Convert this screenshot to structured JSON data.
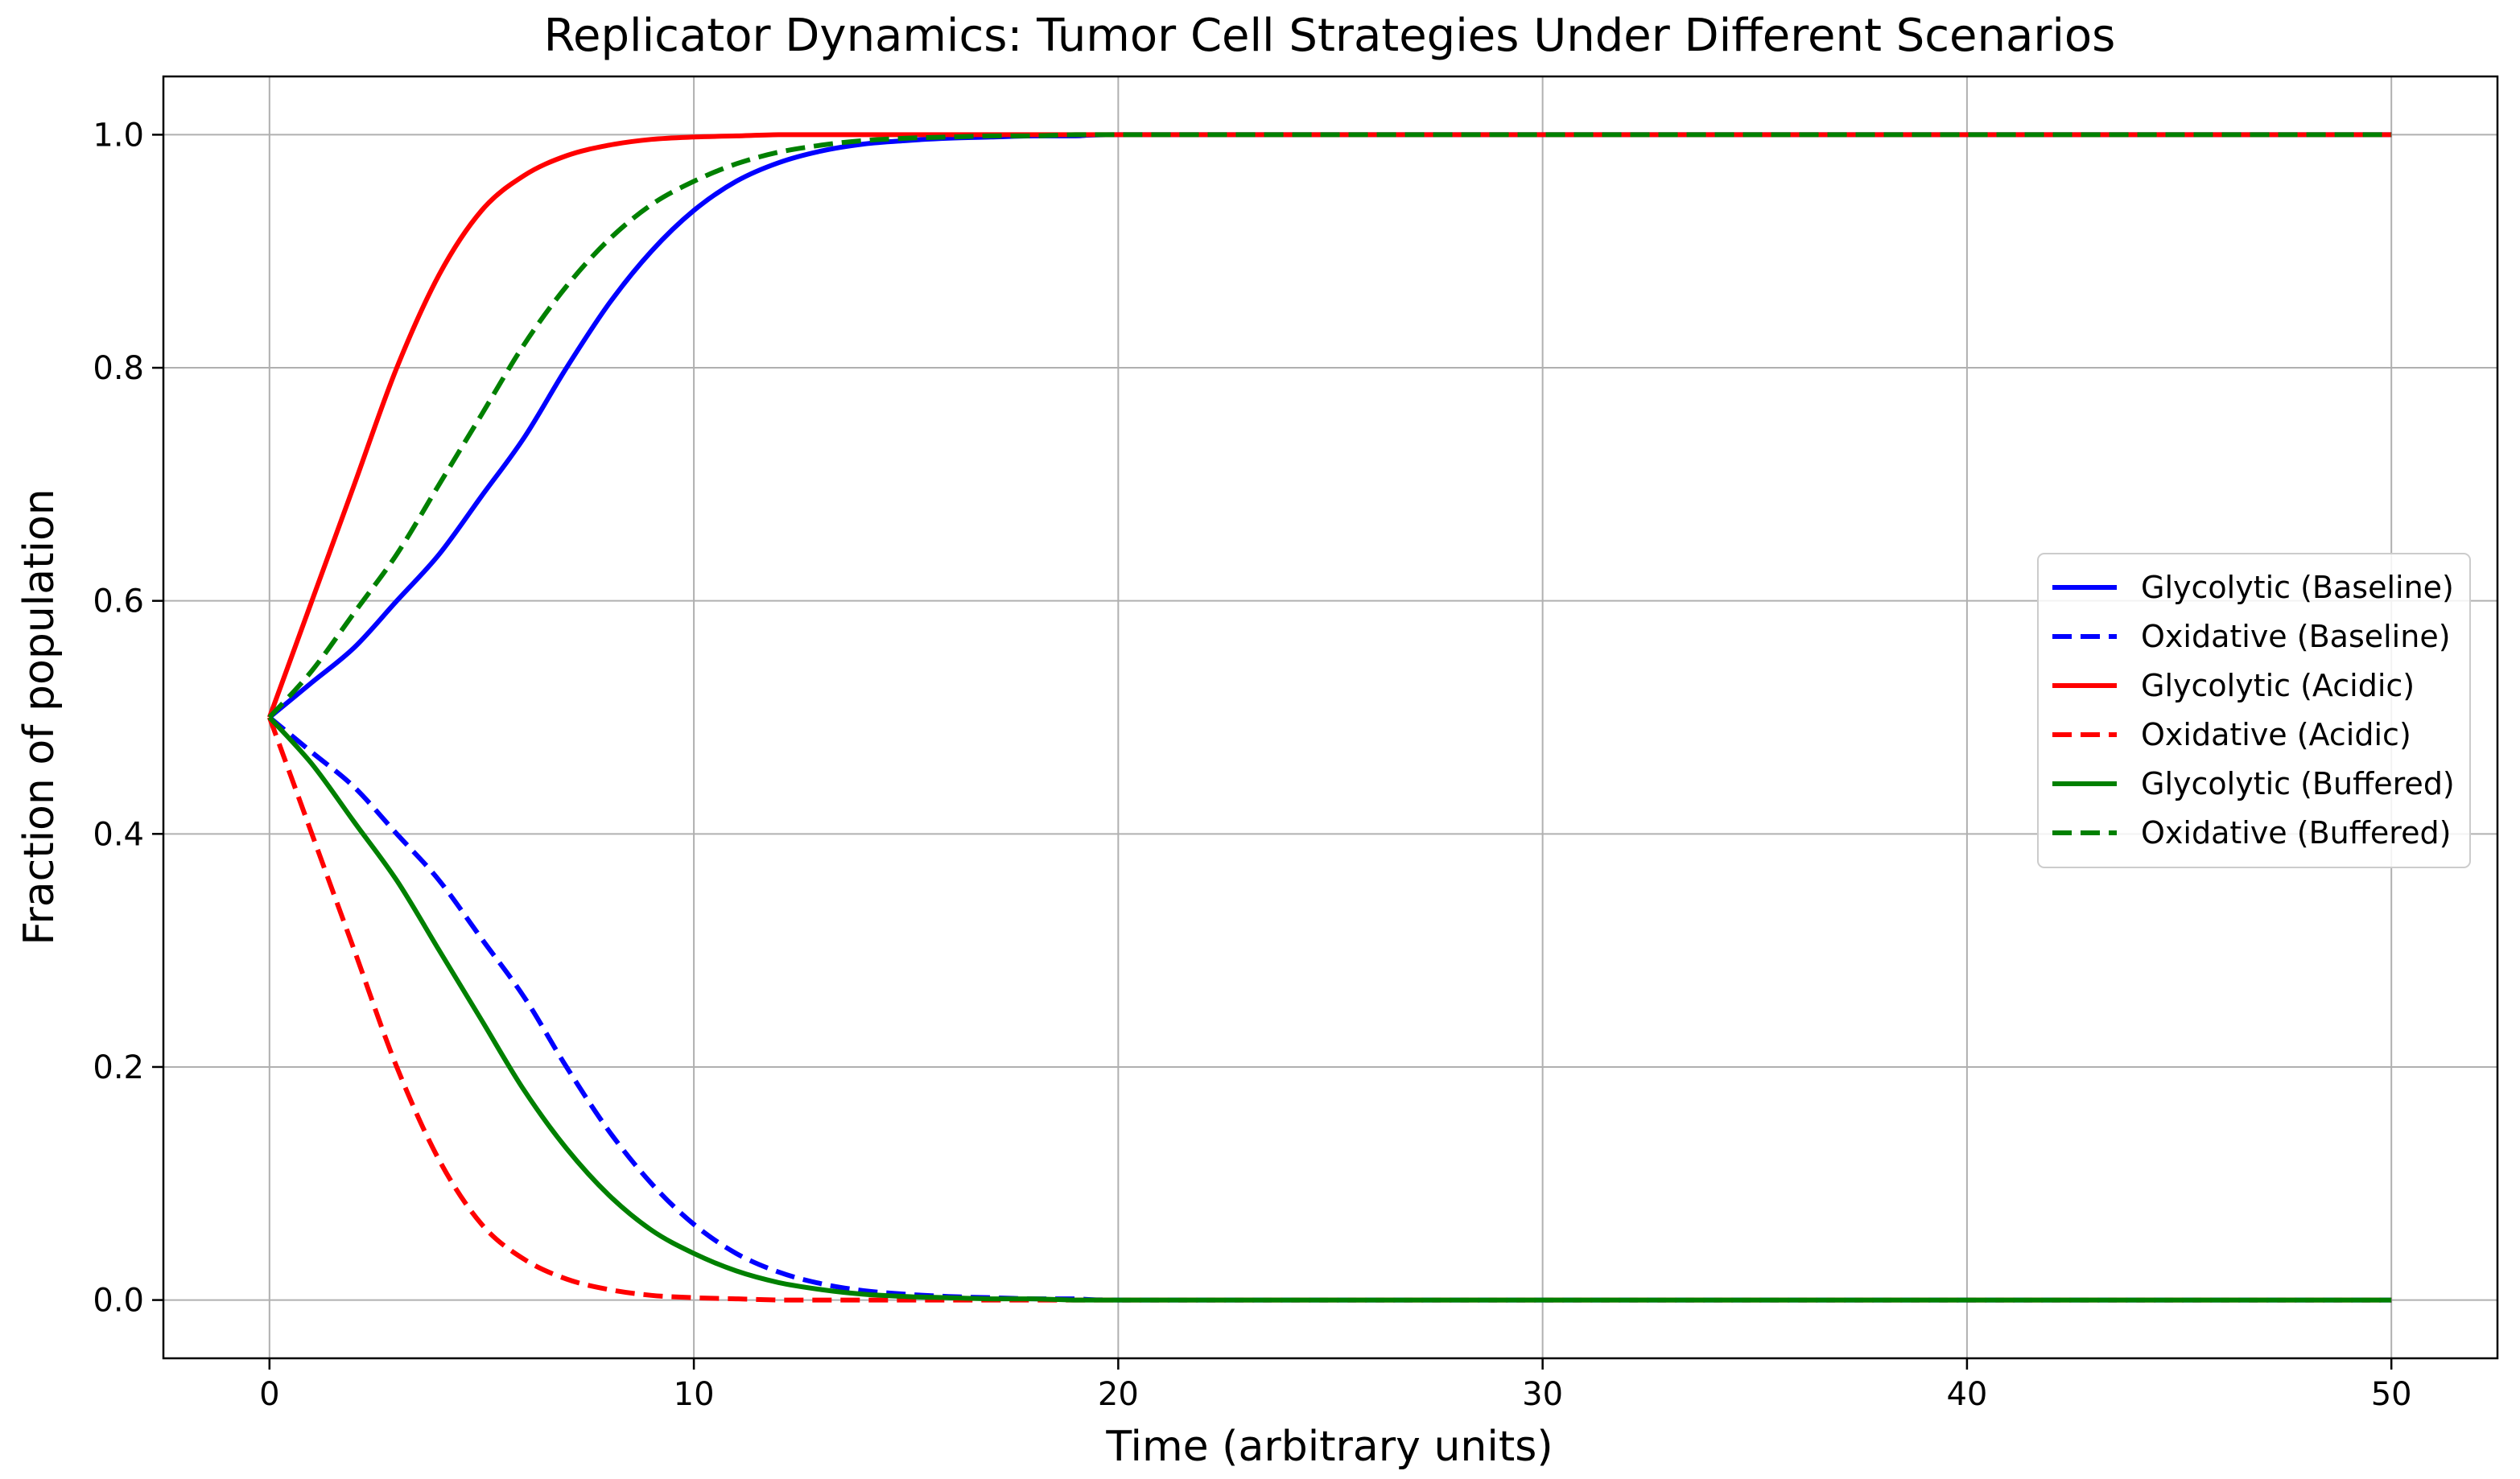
{
  "chart_data": {
    "type": "line",
    "title": "Replicator Dynamics: Tumor Cell Strategies Under Different Scenarios",
    "xlabel": "Time (arbitrary units)",
    "ylabel": "Fraction of population",
    "xlim": [
      -2.5,
      52.5
    ],
    "ylim": [
      -0.05,
      1.05
    ],
    "xticks": [
      0,
      10,
      20,
      30,
      40,
      50
    ],
    "xtick_labels": [
      "0",
      "10",
      "20",
      "30",
      "40",
      "50"
    ],
    "yticks": [
      0.0,
      0.2,
      0.4,
      0.6,
      0.8,
      1.0
    ],
    "ytick_labels": [
      "0.0",
      "0.2",
      "0.4",
      "0.6",
      "0.8",
      "1.0"
    ],
    "grid": true,
    "legend_position": "center-right",
    "x": [
      0,
      1,
      2,
      3,
      4,
      5,
      6,
      7,
      8,
      9,
      10,
      11,
      12,
      13,
      14,
      15,
      16,
      17,
      18,
      19,
      20,
      25,
      30,
      35,
      40,
      45,
      50
    ],
    "series": [
      {
        "name": "Glycolytic (Baseline)",
        "color": "#0000ff",
        "dash": "solid",
        "values": [
          0.5,
          0.53,
          0.56,
          0.6,
          0.64,
          0.69,
          0.74,
          0.8,
          0.855,
          0.9,
          0.935,
          0.96,
          0.976,
          0.986,
          0.992,
          0.995,
          0.997,
          0.998,
          0.999,
          0.999,
          1.0,
          1.0,
          1.0,
          1.0,
          1.0,
          1.0,
          1.0
        ]
      },
      {
        "name": "Oxidative (Baseline)",
        "color": "#0000ff",
        "dash": "dashed",
        "values": [
          0.5,
          0.47,
          0.44,
          0.4,
          0.36,
          0.31,
          0.26,
          0.2,
          0.145,
          0.1,
          0.065,
          0.04,
          0.024,
          0.014,
          0.008,
          0.005,
          0.003,
          0.002,
          0.001,
          0.001,
          0.0,
          0.0,
          0.0,
          0.0,
          0.0,
          0.0,
          0.0
        ]
      },
      {
        "name": "Glycolytic (Acidic)",
        "color": "#ff0000",
        "dash": "solid",
        "values": [
          0.5,
          0.6,
          0.7,
          0.8,
          0.88,
          0.935,
          0.965,
          0.982,
          0.991,
          0.996,
          0.998,
          0.999,
          1.0,
          1.0,
          1.0,
          1.0,
          1.0,
          1.0,
          1.0,
          1.0,
          1.0,
          1.0,
          1.0,
          1.0,
          1.0,
          1.0,
          1.0
        ]
      },
      {
        "name": "Oxidative (Acidic)",
        "color": "#ff0000",
        "dash": "dashed",
        "values": [
          0.5,
          0.4,
          0.3,
          0.2,
          0.12,
          0.065,
          0.035,
          0.018,
          0.009,
          0.004,
          0.002,
          0.001,
          0.0,
          0.0,
          0.0,
          0.0,
          0.0,
          0.0,
          0.0,
          0.0,
          0.0,
          0.0,
          0.0,
          0.0,
          0.0,
          0.0,
          0.0
        ]
      },
      {
        "name": "Glycolytic (Buffered)",
        "color": "#008000",
        "dash": "solid",
        "values": [
          0.5,
          0.46,
          0.41,
          0.36,
          0.3,
          0.24,
          0.18,
          0.13,
          0.09,
          0.06,
          0.04,
          0.025,
          0.015,
          0.009,
          0.005,
          0.003,
          0.002,
          0.001,
          0.001,
          0.0,
          0.0,
          0.0,
          0.0,
          0.0,
          0.0,
          0.0,
          0.0
        ]
      },
      {
        "name": "Oxidative (Buffered)",
        "color": "#008000",
        "dash": "dashed",
        "values": [
          0.5,
          0.54,
          0.59,
          0.64,
          0.7,
          0.76,
          0.82,
          0.87,
          0.91,
          0.94,
          0.96,
          0.975,
          0.985,
          0.991,
          0.995,
          0.997,
          0.998,
          0.999,
          0.999,
          1.0,
          1.0,
          1.0,
          1.0,
          1.0,
          1.0,
          1.0,
          1.0
        ]
      }
    ]
  }
}
